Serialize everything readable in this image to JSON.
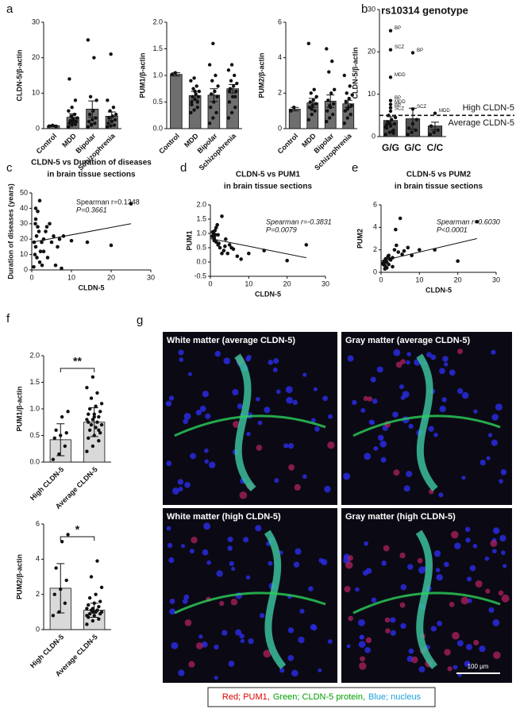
{
  "chart_data": [
    {
      "type": "bar",
      "panel": "a",
      "ylabel": "CLDN-5/β-actin",
      "categories": [
        "Control",
        "MDD",
        "Bipolar",
        "Schizophrenia"
      ],
      "values": [
        0.8,
        3.2,
        5.5,
        3.5
      ],
      "errors": [
        0.2,
        1.0,
        2.3,
        1.2
      ],
      "points": [
        [
          0.7,
          0.9,
          0.6
        ],
        [
          0.5,
          1,
          1.2,
          1.5,
          1.8,
          2,
          2.2,
          2.5,
          3,
          3.5,
          4,
          5,
          6,
          8,
          14,
          2.8
        ],
        [
          0.5,
          1,
          1.5,
          2,
          2.5,
          3,
          4,
          5,
          8,
          9,
          20,
          25,
          1.2
        ],
        [
          0.5,
          0.8,
          1,
          1.5,
          2,
          2.5,
          3,
          3.5,
          4,
          5,
          6,
          8,
          21
        ]
      ],
      "ylim": [
        0,
        30
      ],
      "yticks": [
        0,
        10,
        20,
        30
      ],
      "color": "#6e6e6e"
    },
    {
      "type": "bar",
      "ylabel": "PUM1/β-actin",
      "categories": [
        "Control",
        "MDD",
        "Bipolar",
        "Schizophrenia"
      ],
      "values": [
        1.02,
        0.62,
        0.63,
        0.75
      ],
      "errors": [
        0.03,
        0.08,
        0.12,
        0.08
      ],
      "points": [
        [
          1.02,
          1.05
        ],
        [
          0.3,
          0.35,
          0.4,
          0.5,
          0.55,
          0.6,
          0.6,
          0.65,
          0.7,
          0.75,
          0.8,
          0.9,
          0.95,
          0.5,
          0.45,
          0.7
        ],
        [
          0.1,
          0.2,
          0.3,
          0.4,
          0.5,
          0.6,
          0.65,
          0.7,
          0.8,
          0.9,
          1.0,
          1.2,
          1.6
        ],
        [
          0.2,
          0.3,
          0.4,
          0.5,
          0.6,
          0.7,
          0.75,
          0.8,
          0.85,
          0.9,
          1.0,
          1.1,
          1.2,
          0.6,
          0.7
        ]
      ],
      "ylim": [
        0,
        2
      ],
      "yticks": [
        {
          "value": 0,
          "label": "0.0"
        },
        {
          "value": 0.5,
          "label": "0.5"
        },
        {
          "value": 1,
          "label": "1.0"
        },
        {
          "value": 1.5,
          "label": "1.5"
        },
        {
          "value": 2,
          "label": "2.0"
        }
      ],
      "color": "#6e6e6e"
    },
    {
      "type": "bar",
      "ylabel": "PUM2/β-actin",
      "categories": [
        "Control",
        "MDD",
        "Bipolar",
        "Schizophrenia"
      ],
      "values": [
        1.1,
        1.45,
        1.55,
        1.4
      ],
      "errors": [
        0.1,
        0.25,
        0.35,
        0.2
      ],
      "points": [
        [
          1.0,
          1.2
        ],
        [
          0.5,
          0.8,
          1.0,
          1.2,
          1.3,
          1.4,
          1.5,
          1.6,
          1.8,
          2.0,
          2.2,
          4.8,
          1.1
        ],
        [
          0.4,
          0.6,
          0.8,
          1.0,
          1.2,
          1.4,
          1.6,
          2.0,
          2.2,
          3.2,
          3.8,
          4.5,
          1.3
        ],
        [
          0.3,
          0.6,
          0.8,
          1.0,
          1.2,
          1.3,
          1.5,
          1.7,
          1.9,
          2.0,
          2.4,
          3.0,
          1.1
        ]
      ],
      "ylim": [
        0,
        6
      ],
      "yticks": [
        0,
        2,
        4,
        6
      ],
      "color": "#6e6e6e"
    },
    {
      "type": "bar",
      "panel": "b",
      "title": "rs10314 genotype",
      "ylabel": "CLDN-5/β-actin",
      "categories": [
        "G/G",
        "G/C",
        "C/C"
      ],
      "values": [
        3.8,
        4.2,
        2.5
      ],
      "errors": [
        0.9,
        2.5,
        0.9
      ],
      "points": [
        [
          0.5,
          1,
          1.5,
          2,
          2.5,
          3,
          3.5,
          4,
          4.5,
          5,
          1.2,
          2.2,
          3.2,
          0.8,
          2.8
        ],
        [
          0.5,
          1,
          1.5,
          2,
          3,
          4
        ],
        [
          0.5,
          1,
          1.5,
          2.5
        ]
      ],
      "labeled_points": [
        {
          "category": "G/G",
          "value": 25,
          "label": "BP"
        },
        {
          "category": "G/G",
          "value": 20.5,
          "label": "SCZ"
        },
        {
          "category": "G/G",
          "value": 14,
          "label": "MDD"
        },
        {
          "category": "G/G",
          "value": 8.5,
          "label": "BP"
        },
        {
          "category": "G/G",
          "value": 7.6,
          "label": "MDD"
        },
        {
          "category": "G/G",
          "value": 6.8,
          "label": "BP"
        },
        {
          "category": "G/G",
          "value": 6,
          "label": "SCZ"
        },
        {
          "category": "G/C",
          "value": 19.8,
          "label": "BP"
        },
        {
          "category": "G/C",
          "value": 6.5,
          "label": "SCZ"
        },
        {
          "category": "C/C",
          "value": 5.5,
          "label": "MDD"
        }
      ],
      "threshold": 5,
      "threshold_labels": [
        "High CLDN-5",
        "Average CLDN-5"
      ],
      "ylim": [
        0,
        30
      ],
      "yticks": [
        0,
        10,
        20,
        30
      ],
      "color": "#505050"
    },
    {
      "type": "scatter",
      "panel": "c",
      "title": [
        "CLDN-5 vs Duration of diseases",
        "in brain tissue sections"
      ],
      "xlabel": "CLDN-5",
      "ylabel": "Duration of diseases (years)",
      "annotations": [
        "Spearman r=0.1348",
        "P=0.3661"
      ],
      "x": [
        0.5,
        0.8,
        1,
        1.2,
        1.5,
        1.5,
        2,
        2,
        2.5,
        3,
        3,
        3.5,
        4,
        4.5,
        5,
        5.5,
        6,
        7,
        7.5,
        8,
        10,
        14,
        20,
        25,
        1,
        1,
        1.8,
        0.6,
        2.2,
        3.8,
        1.3,
        0.9,
        2.6,
        6.5
      ],
      "y": [
        2,
        10,
        15,
        22,
        28,
        38,
        45,
        5,
        18,
        20,
        12,
        25,
        8,
        30,
        18,
        22,
        3,
        20,
        1,
        22,
        19,
        18,
        16,
        43,
        33,
        40,
        25,
        18,
        12,
        28,
        8,
        30,
        3,
        15
      ],
      "fit": {
        "x": [
          0,
          25
        ],
        "y": [
          18,
          30
        ]
      },
      "xlim": [
        0,
        30
      ],
      "xticks": [
        0,
        10,
        20,
        30
      ],
      "ylim": [
        0,
        50
      ],
      "yticks": [
        0,
        10,
        20,
        30,
        40,
        50
      ]
    },
    {
      "type": "scatter",
      "panel": "d",
      "title": [
        "CLDN-5 vs PUM1",
        "in brain tissue sections"
      ],
      "xlabel": "CLDN-5",
      "ylabel": "PUM1",
      "annotations": [
        "Spearman r=-0.3831",
        "P=0.0079"
      ],
      "x": [
        0.5,
        0.8,
        1,
        1.2,
        1.5,
        1.5,
        2,
        2,
        2.5,
        3,
        3,
        3.5,
        4,
        4.5,
        5,
        5.5,
        6,
        7,
        8,
        10,
        14,
        20,
        25,
        1,
        1,
        1.8,
        0.6,
        2.2,
        3.8,
        1.3
      ],
      "y": [
        0.9,
        1.0,
        0.8,
        1.1,
        0.7,
        1.2,
        0.6,
        0.95,
        0.5,
        0.3,
        1.6,
        0.4,
        0.8,
        0.3,
        0.6,
        0.5,
        0.45,
        0.2,
        0.1,
        0.3,
        0.4,
        0.05,
        0.6,
        0.85,
        0.75,
        1.3,
        1.05,
        0.65,
        0.55,
        0.95
      ],
      "fit": {
        "x": [
          0,
          25
        ],
        "y": [
          0.82,
          0.15
        ]
      },
      "xlim": [
        0,
        30
      ],
      "xticks": [
        0,
        10,
        20,
        30
      ],
      "ylim": [
        -0.5,
        2
      ],
      "yticks": [
        -0.5,
        {
          "value": 0,
          "label": "0.0"
        },
        0.5,
        {
          "value": 1,
          "label": "1.0"
        },
        1.5,
        {
          "value": 2,
          "label": "2.0"
        }
      ]
    },
    {
      "type": "scatter",
      "panel": "e",
      "title": [
        "CLDN-5 vs PUM2",
        "in brain tissue sections"
      ],
      "xlabel": "CLDN-5",
      "ylabel": "PUM2",
      "annotations": [
        "Spearman r=0.6030",
        "P<0.0001"
      ],
      "x": [
        0.5,
        0.8,
        1,
        1.2,
        1.5,
        1.5,
        2,
        2,
        2.5,
        3,
        3,
        3.5,
        4,
        4.5,
        5,
        5.5,
        6,
        7,
        8,
        10,
        14,
        20,
        25,
        1,
        1,
        1.8,
        0.6,
        2.2,
        3.8,
        1.3
      ],
      "y": [
        0.8,
        1.0,
        0.6,
        1.2,
        0.4,
        0.9,
        1.5,
        0.7,
        1.1,
        1.3,
        0.5,
        2.0,
        2.4,
        1.8,
        4.8,
        1.6,
        1.9,
        2.2,
        1.5,
        2.0,
        2.0,
        1.0,
        4.5,
        0.9,
        0.3,
        1.4,
        0.7,
        1.2,
        3.8,
        1.0
      ],
      "fit": {
        "x": [
          0,
          25
        ],
        "y": [
          1.0,
          3.0
        ]
      },
      "xlim": [
        0,
        30
      ],
      "xticks": [
        0,
        10,
        20,
        30
      ],
      "ylim": [
        0,
        6
      ],
      "yticks": [
        0,
        2,
        4,
        6
      ]
    },
    {
      "type": "bar",
      "panel": "f",
      "ylabel": "PUM1/β-actin",
      "categories": [
        "High CLDN-5",
        "Average CLDN-5"
      ],
      "values": [
        0.42,
        0.75
      ],
      "errors": [
        0.3,
        0.27
      ],
      "significance": "**",
      "points": [
        [
          0.05,
          0.15,
          0.3,
          0.45,
          0.5,
          0.55,
          0.6,
          0.85,
          0.95
        ],
        [
          0.2,
          0.3,
          0.4,
          0.45,
          0.5,
          0.55,
          0.6,
          0.65,
          0.7,
          0.7,
          0.75,
          0.8,
          0.8,
          0.85,
          0.9,
          0.9,
          0.95,
          1.0,
          1.05,
          1.1,
          1.2,
          1.3,
          1.4,
          1.6,
          0.6,
          0.75,
          0.85
        ]
      ],
      "ylim": [
        0,
        2
      ],
      "yticks": [
        {
          "value": 0,
          "label": "0.0"
        },
        {
          "value": 0.5,
          "label": "0.5"
        },
        {
          "value": 1,
          "label": "1.0"
        },
        {
          "value": 1.5,
          "label": "1.5"
        },
        {
          "value": 2,
          "label": "2.0"
        }
      ],
      "color": "#d9d9d9"
    },
    {
      "type": "bar",
      "ylabel": "PUM2/β-actin",
      "categories": [
        "High CLDN-5",
        "Average CLDN-5"
      ],
      "values": [
        2.35,
        1.1
      ],
      "errors": [
        1.4,
        0.4
      ],
      "significance": "*",
      "points": [
        [
          0.8,
          1.0,
          1.5,
          2.0,
          2.3,
          2.8,
          3.5,
          5.0,
          5.4
        ],
        [
          0.3,
          0.5,
          0.6,
          0.7,
          0.8,
          0.9,
          0.9,
          1.0,
          1.0,
          1.1,
          1.1,
          1.2,
          1.2,
          1.3,
          1.4,
          1.5,
          1.6,
          1.8,
          2.0,
          2.4,
          3.0,
          3.9,
          0.8,
          1.0
        ]
      ],
      "ylim": [
        0,
        6
      ],
      "yticks": [
        0,
        2,
        4,
        6
      ],
      "color": "#d9d9d9"
    }
  ],
  "image_panel": {
    "panel": "g",
    "images": [
      "White matter (average CLDN-5)",
      "Gray matter (average CLDN-5)",
      "White matter (high CLDN-5)",
      "Gray matter (high CLDN-5)"
    ],
    "scale_bar": "100 μm",
    "legend": [
      {
        "text": "Red; PUM1,",
        "color": "#e00000"
      },
      {
        "text": "Green; CLDN-5 protein,",
        "color": "#00a000"
      },
      {
        "text": "Blue; nucleus",
        "color": "#1aa0d8"
      }
    ]
  }
}
